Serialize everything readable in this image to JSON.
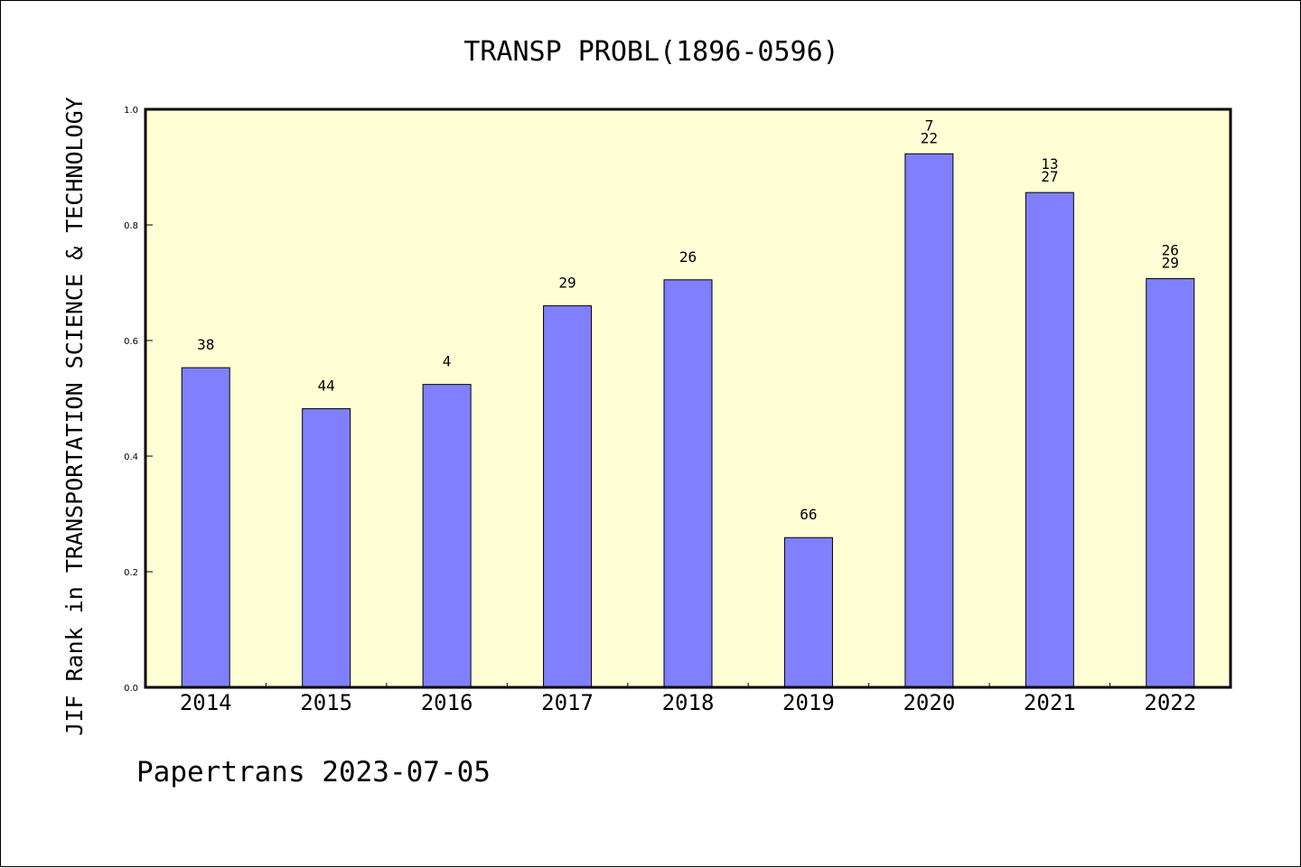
{
  "chart_data": {
    "type": "bar",
    "title": "TRANSP PROBL(1896-0596)",
    "ylabel": "JIF Rank in TRANSPORTATION SCIENCE & TECHNOLOGY",
    "xlabel": "",
    "footer": "Papertrans 2023-07-05",
    "categories": [
      "2014",
      "2015",
      "2016",
      "2017",
      "2018",
      "2019",
      "2020",
      "2021",
      "2022"
    ],
    "values": [
      0.553,
      0.482,
      0.524,
      0.66,
      0.705,
      0.259,
      0.923,
      0.856,
      0.707
    ],
    "data_labels": [
      [
        "38"
      ],
      [
        "44"
      ],
      [
        "4"
      ],
      [
        "29"
      ],
      [
        "26"
      ],
      [
        "66"
      ],
      [
        "7",
        "22"
      ],
      [
        "13",
        "27"
      ],
      [
        "26",
        "29"
      ]
    ],
    "ylim": [
      0,
      1.0
    ],
    "yticks": [
      "0.0",
      "0.2",
      "0.4",
      "0.6",
      "0.8",
      "1.0"
    ],
    "grid": false,
    "colors": {
      "bar_fill": "#8080ff",
      "plot_background": "#ffffd5",
      "axis": "#000000"
    }
  }
}
